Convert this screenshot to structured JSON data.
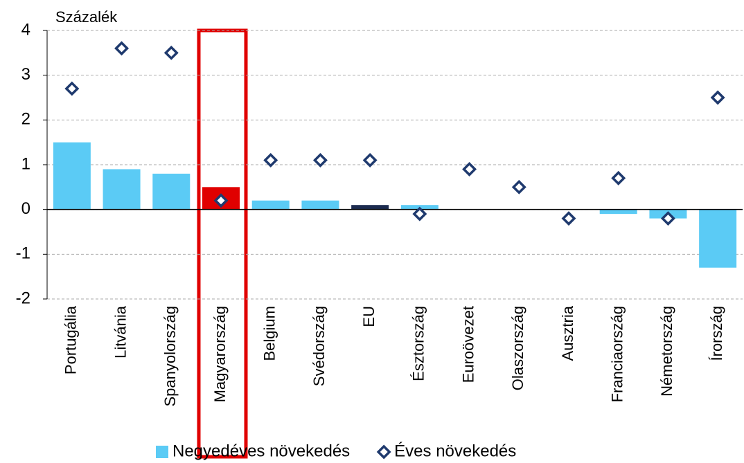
{
  "chart_data": {
    "type": "bar",
    "y_label": "Százalék",
    "categories": [
      "Portugália",
      "Litvánia",
      "Spanyolország",
      "Magyarország",
      "Belgium",
      "Svédország",
      "EU",
      "Észtország",
      "Euroövezet",
      "Olaszország",
      "Ausztria",
      "Franciaország",
      "Németország",
      "Írország"
    ],
    "series": [
      {
        "name": "Negyedéves növekedés",
        "type": "bar",
        "color": "#5bcbf5",
        "colors": [
          "#5bcbf5",
          "#5bcbf5",
          "#5bcbf5",
          "#e00000",
          "#5bcbf5",
          "#5bcbf5",
          "#1c2b4f",
          "#5bcbf5",
          "#5bcbf5",
          "#5bcbf5",
          "#5bcbf5",
          "#5bcbf5",
          "#5bcbf5",
          "#5bcbf5"
        ],
        "values": [
          1.5,
          0.9,
          0.8,
          0.5,
          0.2,
          0.2,
          0.1,
          0.1,
          0.0,
          0.0,
          0.0,
          -0.1,
          -0.2,
          -1.3
        ]
      },
      {
        "name": "Éves növekedés",
        "type": "scatter",
        "marker": "diamond",
        "color": "#1f3a6e",
        "values": [
          2.7,
          3.6,
          3.5,
          0.2,
          1.1,
          1.1,
          1.1,
          -0.1,
          0.9,
          0.5,
          -0.2,
          0.7,
          -0.2,
          2.5
        ]
      }
    ],
    "ylim": [
      -2,
      4
    ],
    "yticks": [
      -2,
      -1,
      0,
      1,
      2,
      3,
      4
    ],
    "grid": true,
    "legend": "bottom"
  }
}
